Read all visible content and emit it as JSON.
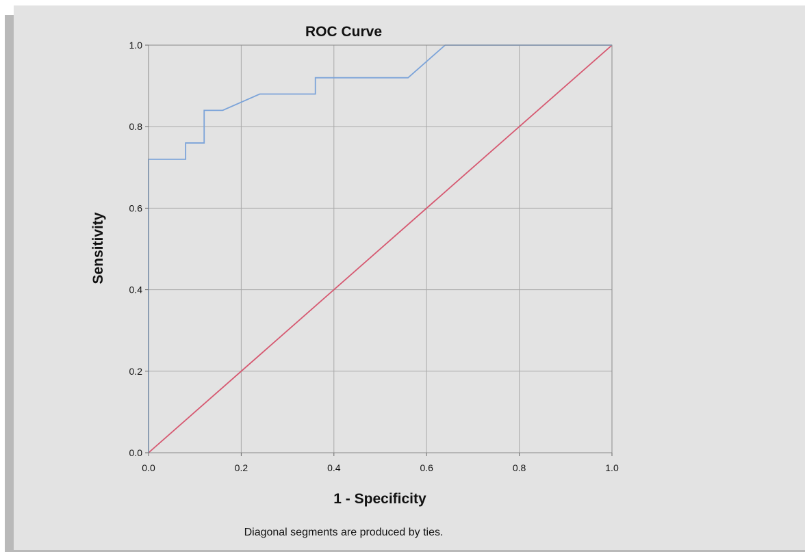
{
  "chart_data": {
    "type": "line",
    "title": "ROC Curve",
    "xlabel": "1 - Specificity",
    "ylabel": "Sensitivity",
    "footnote": "Diagonal segments are produced by ties.",
    "xlim": [
      0,
      1
    ],
    "ylim": [
      0,
      1
    ],
    "xticks": [
      "0.0",
      "0.2",
      "0.4",
      "0.6",
      "0.8",
      "1.0"
    ],
    "yticks": [
      "0.0",
      "0.2",
      "0.4",
      "0.6",
      "0.8",
      "1.0"
    ],
    "grid": true,
    "series": [
      {
        "color": "#7ba3d9",
        "x": [
          0,
          0,
          0.08,
          0.08,
          0.12,
          0.12,
          0.16,
          0.24,
          0.36,
          0.36,
          0.56,
          0.64,
          1.0
        ],
        "y": [
          0,
          0.72,
          0.72,
          0.76,
          0.76,
          0.84,
          0.84,
          0.88,
          0.88,
          0.92,
          0.92,
          1.0,
          1.0
        ]
      },
      {
        "color": "#d65870",
        "x": [
          0,
          1
        ],
        "y": [
          0,
          1
        ]
      }
    ]
  }
}
